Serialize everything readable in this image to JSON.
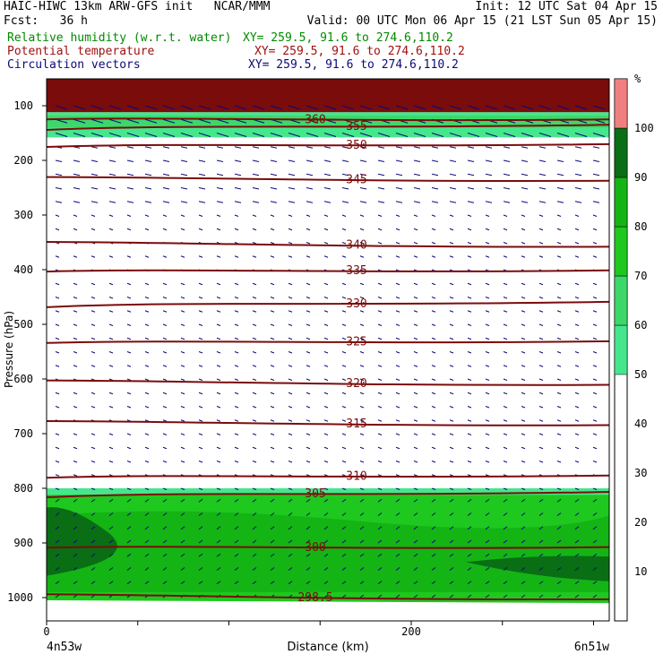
{
  "header": {
    "line1_left": "HAIC-HIWC 13km ARW-GFS init   NCAR/MMM",
    "line1_right": "Init: 12 UTC Sat 04 Apr 15",
    "line2_left": "Fcst:   36 h",
    "line2_right": "Valid: 00 UTC Mon 06 Apr 15 (21 LST Sun 05 Apr 15)",
    "fields": [
      {
        "name": "Relative humidity (w.r.t. water)",
        "xy": "XY= 259.5, 91.6 to 274.6,110.2",
        "color": "#008a00"
      },
      {
        "name": "Potential temperature",
        "xy": "XY= 259.5, 91.6 to 274.6,110.2",
        "color": "#a01010"
      },
      {
        "name": "Circulation vectors",
        "xy": "XY= 259.5, 91.6 to 274.6,110.2",
        "color": "#0a0a7a"
      }
    ]
  },
  "chart_data": {
    "type": "contour cross-section",
    "xlabel": "Distance (km)",
    "ylabel": "Pressure (hPa)",
    "xlim": [
      0,
      300
    ],
    "ylim": [
      1050,
      50
    ],
    "x_ticks": [
      "0",
      "200"
    ],
    "x_tick_values": [
      0,
      200
    ],
    "x_end_labels": {
      "left": "4n53w",
      "right": "6n51w"
    },
    "y_ticks": [
      100,
      200,
      300,
      400,
      500,
      600,
      700,
      800,
      900,
      1000
    ],
    "colorbar": {
      "unit": "%",
      "ticks": [
        10,
        20,
        30,
        40,
        50,
        60,
        70,
        80,
        90,
        100
      ],
      "bands": [
        {
          "from": 50,
          "to": 60,
          "color": "#46e68c"
        },
        {
          "from": 60,
          "to": 70,
          "color": "#3cd86a"
        },
        {
          "from": 70,
          "to": 80,
          "color": "#1ec81e"
        },
        {
          "from": 80,
          "to": 90,
          "color": "#14b414"
        },
        {
          "from": 90,
          "to": 100,
          "color": "#0a6e14"
        },
        {
          "from": 100,
          "to": 110,
          "color": "#f08080"
        }
      ]
    },
    "theta_contours": [
      {
        "label": "360",
        "p": 125
      },
      {
        "label": "355",
        "p": 138
      },
      {
        "label": "350",
        "p": 172
      },
      {
        "label": "345",
        "p": 235
      },
      {
        "label": "340",
        "p": 355
      },
      {
        "label": "335",
        "p": 402
      },
      {
        "label": "330",
        "p": 462
      },
      {
        "label": "325",
        "p": 532
      },
      {
        "label": "320",
        "p": 608
      },
      {
        "label": "315",
        "p": 682
      },
      {
        "label": "310",
        "p": 778
      },
      {
        "label": "305",
        "p": 810
      },
      {
        "label": "300",
        "p": 908
      },
      {
        "label": "298.5",
        "p": 1000
      }
    ]
  }
}
